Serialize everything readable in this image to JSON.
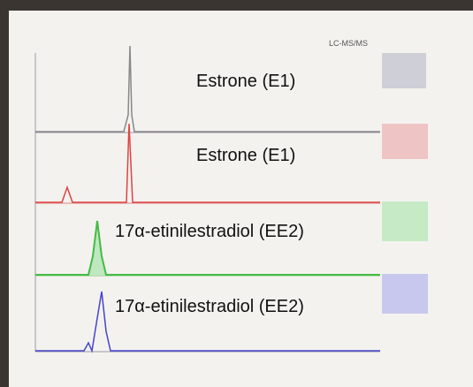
{
  "header": "LC-MS/MS",
  "panels": [
    {
      "label": "Estrone (E1)"
    },
    {
      "label": "Estrone (E1)"
    },
    {
      "label": "17α-etinilestradiol (EE2)"
    },
    {
      "label": "17α-etinilestradiol (EE2)"
    }
  ]
}
